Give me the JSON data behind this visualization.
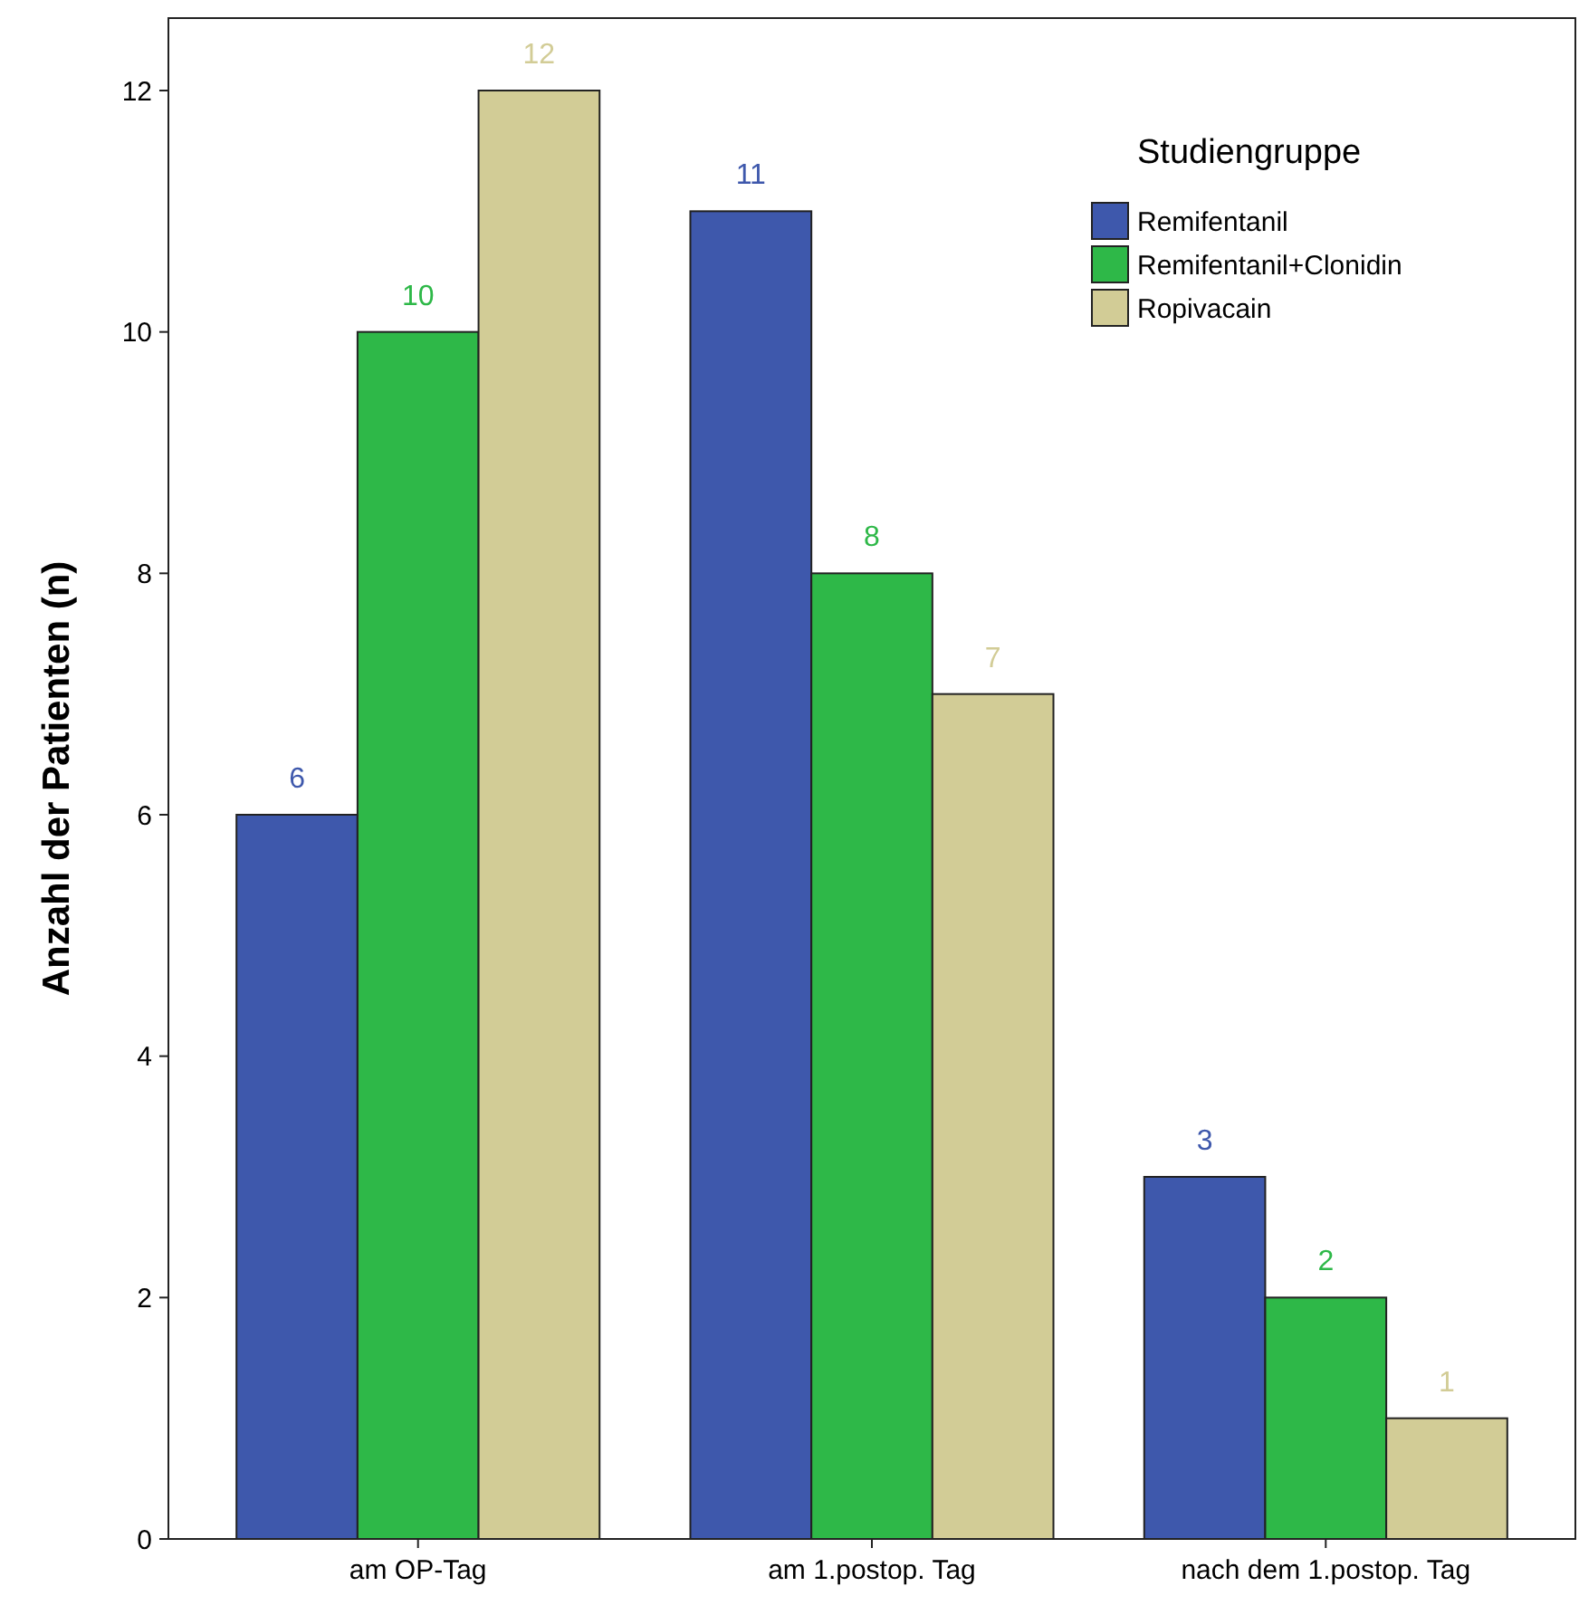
{
  "chart_data": {
    "type": "bar",
    "ylabel": "Anzahl der Patienten (n)",
    "legend_title": "Studiengruppe",
    "categories": [
      "am OP-Tag",
      "am 1.postop. Tag",
      "nach dem 1.postop. Tag"
    ],
    "series": [
      {
        "name": "Remifentanil",
        "color": "#3e58ac",
        "values": [
          6,
          11,
          3
        ]
      },
      {
        "name": "Remifentanil+Clonidin",
        "color": "#2eb848",
        "values": [
          10,
          8,
          2
        ]
      },
      {
        "name": "Ropivacain",
        "color": "#d2cc96",
        "values": [
          12,
          7,
          1
        ]
      }
    ],
    "ylim": [
      0,
      12.6
    ],
    "yticks": [
      0,
      2,
      4,
      6,
      8,
      10,
      12
    ],
    "grid": false,
    "legend": "top right",
    "data_labels": true
  }
}
